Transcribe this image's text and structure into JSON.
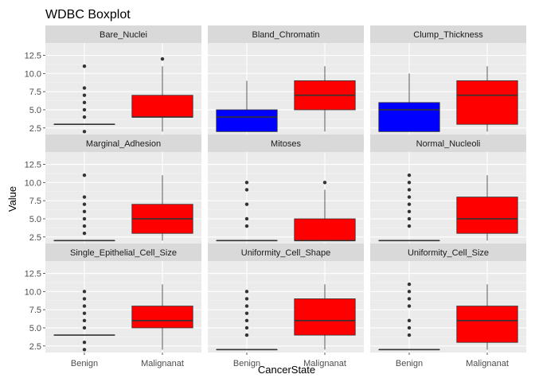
{
  "chart_data": {
    "type": "boxplot",
    "title": "WDBC Boxplot",
    "xlabel": "CancerState",
    "ylabel": "Value",
    "categories": [
      "Benign",
      "Malignanat"
    ],
    "ylim": [
      1.6,
      14.2
    ],
    "yticks": [
      2.5,
      5.0,
      7.5,
      10.0,
      12.5
    ],
    "ytick_labels": [
      "2.5",
      "5.0",
      "7.5",
      "10.0",
      "12.5"
    ],
    "grid": true,
    "colors": {
      "Benign": "#0000ff",
      "Malignanat": "#ff0000"
    },
    "panels": [
      {
        "name": "Bare_Nuclei",
        "boxes": [
          {
            "category": "Benign",
            "whisker_low": 3,
            "q1": 3,
            "median": 3,
            "q3": 3,
            "whisker_high": 3,
            "outliers": [
              2,
              4,
              5,
              6,
              7,
              8,
              11
            ]
          },
          {
            "category": "Malignanat",
            "whisker_low": 2,
            "q1": 4,
            "median": 4,
            "q3": 7,
            "whisker_high": 11,
            "outliers": [
              12
            ]
          }
        ]
      },
      {
        "name": "Bland_Chromatin",
        "boxes": [
          {
            "category": "Benign",
            "whisker_low": 2,
            "q1": 2,
            "median": 4,
            "q3": 5,
            "whisker_high": 9,
            "outliers": []
          },
          {
            "category": "Malignanat",
            "whisker_low": 2,
            "q1": 5,
            "median": 7,
            "q3": 9,
            "whisker_high": 11,
            "outliers": []
          }
        ]
      },
      {
        "name": "Clump_Thickness",
        "boxes": [
          {
            "category": "Benign",
            "whisker_low": 2,
            "q1": 2,
            "median": 5,
            "q3": 6,
            "whisker_high": 10,
            "outliers": []
          },
          {
            "category": "Malignanat",
            "whisker_low": 2,
            "q1": 3,
            "median": 7,
            "q3": 9,
            "whisker_high": 11,
            "outliers": []
          }
        ]
      },
      {
        "name": "Marginal_Adhesion",
        "boxes": [
          {
            "category": "Benign",
            "whisker_low": 2,
            "q1": 2,
            "median": 2,
            "q3": 2,
            "whisker_high": 2,
            "outliers": [
              3,
              4,
              5,
              6,
              7,
              8,
              11
            ]
          },
          {
            "category": "Malignanat",
            "whisker_low": 2,
            "q1": 3,
            "median": 5,
            "q3": 7,
            "whisker_high": 11,
            "outliers": []
          }
        ]
      },
      {
        "name": "Mitoses",
        "boxes": [
          {
            "category": "Benign",
            "whisker_low": 2,
            "q1": 2,
            "median": 2,
            "q3": 2,
            "whisker_high": 2,
            "outliers": [
              4,
              5,
              7,
              9,
              10
            ]
          },
          {
            "category": "Malignanat",
            "whisker_low": 2,
            "q1": 2,
            "median": 2,
            "q3": 5,
            "whisker_high": 9,
            "outliers": [
              10
            ]
          }
        ]
      },
      {
        "name": "Normal_Nucleoli",
        "boxes": [
          {
            "category": "Benign",
            "whisker_low": 2,
            "q1": 2,
            "median": 2,
            "q3": 2,
            "whisker_high": 2,
            "outliers": [
              4,
              5,
              6,
              7,
              8,
              9,
              10,
              11
            ]
          },
          {
            "category": "Malignanat",
            "whisker_low": 2,
            "q1": 3,
            "median": 5,
            "q3": 8,
            "whisker_high": 11,
            "outliers": []
          }
        ]
      },
      {
        "name": "Single_Epithelial_Cell_Size",
        "boxes": [
          {
            "category": "Benign",
            "whisker_low": 4,
            "q1": 4,
            "median": 4,
            "q3": 4,
            "whisker_high": 4,
            "outliers": [
              2,
              3,
              5,
              6,
              7,
              8,
              9,
              10
            ]
          },
          {
            "category": "Malignanat",
            "whisker_low": 2,
            "q1": 5,
            "median": 6,
            "q3": 8,
            "whisker_high": 11,
            "outliers": []
          }
        ]
      },
      {
        "name": "Uniformity_Cell_Shape",
        "boxes": [
          {
            "category": "Benign",
            "whisker_low": 2,
            "q1": 2,
            "median": 2,
            "q3": 2,
            "whisker_high": 2,
            "outliers": [
              4,
              5,
              6,
              7,
              8,
              9,
              10
            ]
          },
          {
            "category": "Malignanat",
            "whisker_low": 2,
            "q1": 4,
            "median": 6,
            "q3": 9,
            "whisker_high": 11,
            "outliers": []
          }
        ]
      },
      {
        "name": "Uniformity_Cell_Size",
        "boxes": [
          {
            "category": "Benign",
            "whisker_low": 2,
            "q1": 2,
            "median": 2,
            "q3": 2,
            "whisker_high": 2,
            "outliers": [
              4,
              5,
              6,
              8,
              9,
              10,
              11
            ]
          },
          {
            "category": "Malignanat",
            "whisker_low": 2,
            "q1": 3,
            "median": 6,
            "q3": 8,
            "whisker_high": 11,
            "outliers": []
          }
        ]
      }
    ]
  }
}
